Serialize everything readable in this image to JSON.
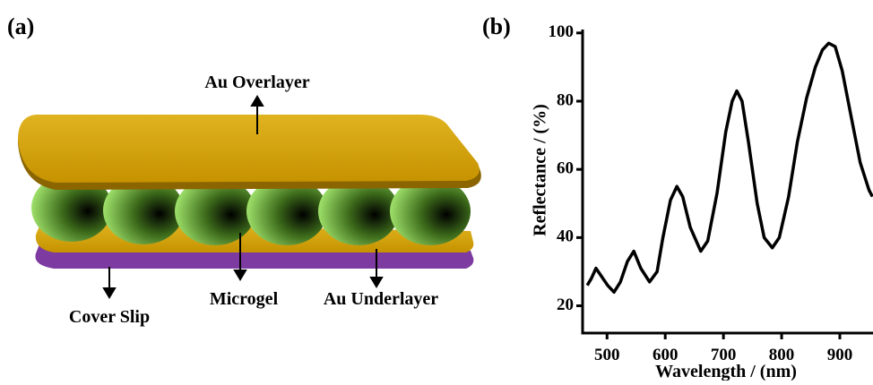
{
  "diagram": {
    "panel_label": "(a)",
    "labels": {
      "overlayer": "Au Overlayer",
      "microgel": "Microgel",
      "underlayer": "Au Underlayer",
      "cover_slip": "Cover Slip"
    }
  },
  "chart_data": {
    "type": "line",
    "panel_label": "(b)",
    "x_label": "Wavelength / (nm)",
    "y_label": "Reflectance / (%)",
    "x": [
      466,
      473,
      481,
      489,
      501,
      512,
      523,
      535,
      546,
      558,
      573,
      586,
      596,
      609,
      620,
      630,
      643,
      661,
      673,
      689,
      704,
      715,
      723,
      732,
      743,
      758,
      770,
      784,
      796,
      812,
      827,
      843,
      858,
      870,
      881,
      892,
      904,
      920,
      935,
      950,
      956
    ],
    "series": [
      {
        "color": "#000000",
        "values": [
          26,
          28,
          31,
          29,
          26,
          24,
          27,
          33,
          36,
          31,
          27,
          30,
          40,
          51,
          55,
          52,
          43,
          36,
          39,
          53,
          71,
          80,
          83,
          80,
          68,
          50,
          40,
          37,
          40,
          52,
          68,
          81,
          90,
          95,
          97,
          96,
          89,
          75,
          62,
          54,
          52
        ]
      }
    ],
    "xlim": [
      458,
      957
    ],
    "ylim": [
      12,
      101
    ],
    "xticks": [
      500,
      600,
      700,
      800,
      900
    ],
    "yticks": [
      20,
      40,
      60,
      80,
      100
    ]
  }
}
